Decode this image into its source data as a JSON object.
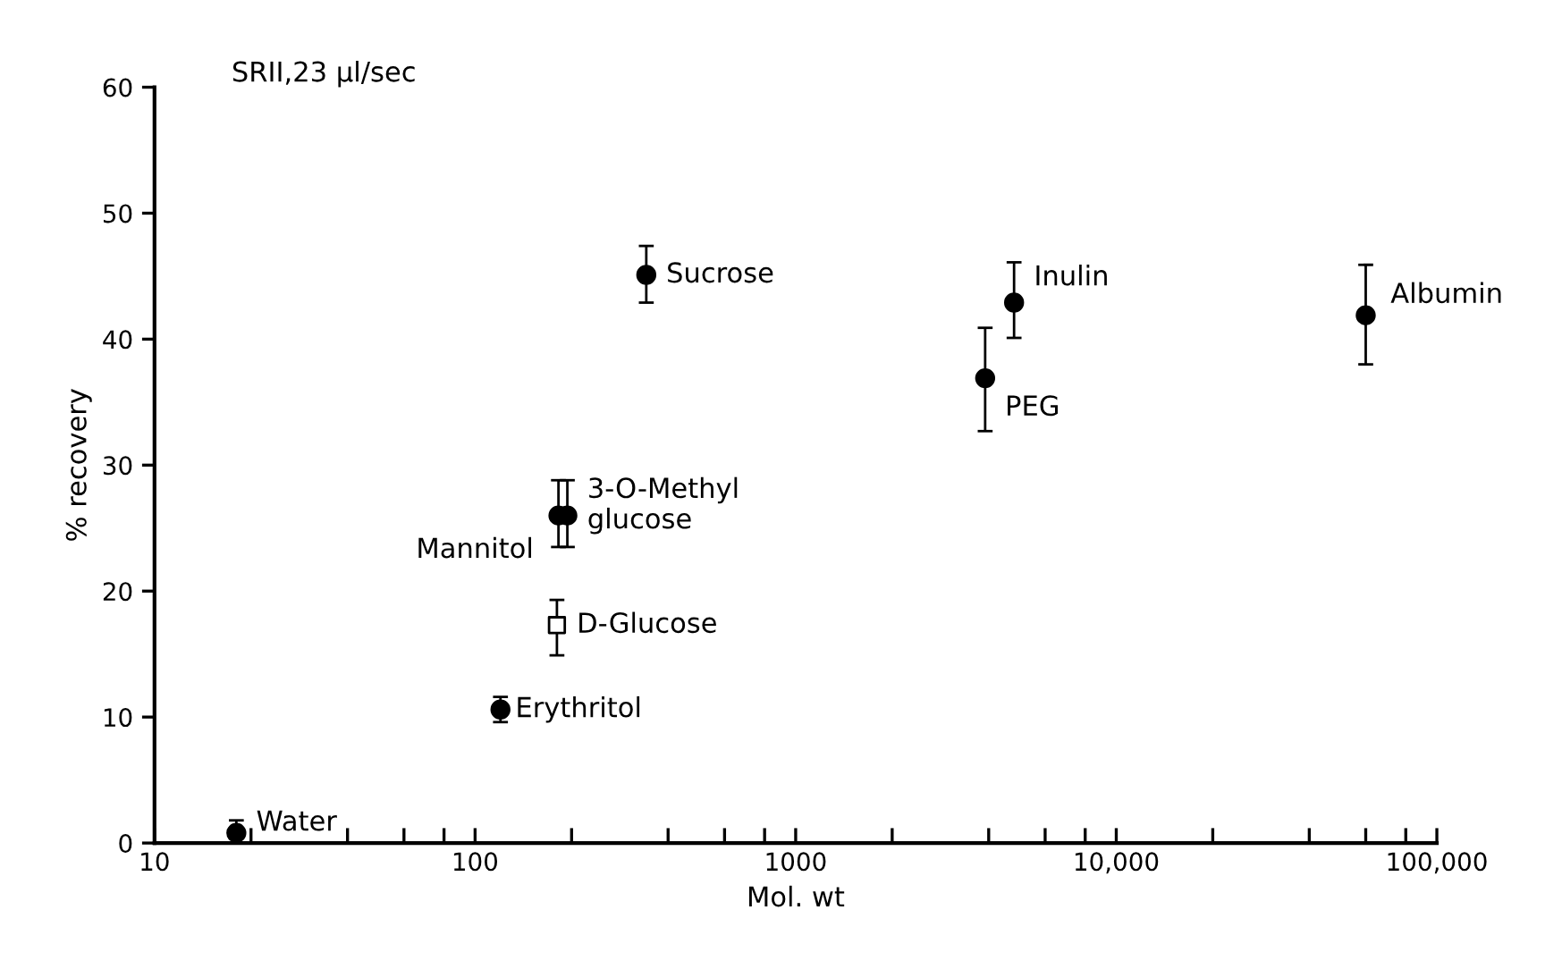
{
  "chart_data": {
    "type": "scatter",
    "title": "SRII,23 μl/sec",
    "xlabel": "Mol. wt",
    "ylabel": "% recovery",
    "log": "x",
    "xlim": [
      10,
      100000
    ],
    "ylim": [
      0,
      60
    ],
    "xticks": [
      {
        "value": 10,
        "label": "10"
      },
      {
        "value": 20,
        "label": null
      },
      {
        "value": 40,
        "label": null
      },
      {
        "value": 60,
        "label": null
      },
      {
        "value": 80,
        "label": null
      },
      {
        "value": 100,
        "label": "100"
      },
      {
        "value": 200,
        "label": null
      },
      {
        "value": 400,
        "label": null
      },
      {
        "value": 600,
        "label": null
      },
      {
        "value": 800,
        "label": null
      },
      {
        "value": 1000,
        "label": "1000"
      },
      {
        "value": 2000,
        "label": null
      },
      {
        "value": 4000,
        "label": null
      },
      {
        "value": 6000,
        "label": null
      },
      {
        "value": 8000,
        "label": null
      },
      {
        "value": 10000,
        "label": "10,000"
      },
      {
        "value": 20000,
        "label": null
      },
      {
        "value": 40000,
        "label": null
      },
      {
        "value": 60000,
        "label": null
      },
      {
        "value": 80000,
        "label": null
      },
      {
        "value": 100000,
        "label": "100,000"
      }
    ],
    "yticks": [
      0,
      10,
      20,
      30,
      40,
      50,
      60
    ],
    "grid": false,
    "legend": false,
    "series": [
      {
        "color": "#000000",
        "marker": "circle",
        "x": [
          18,
          120,
          182,
          194,
          342,
          3900,
          4800,
          60000
        ],
        "values": [
          0.8,
          10.6,
          26,
          26,
          45.1,
          36.9,
          42.9,
          41.9
        ],
        "errors": [
          1.0,
          1.0,
          [
            23.5,
            28.8
          ],
          [
            23.5,
            28.8
          ],
          [
            42.9,
            47.4
          ],
          [
            32.7,
            40.9
          ],
          [
            40.1,
            46.1
          ],
          [
            38.0,
            45.9
          ]
        ]
      },
      {
        "color": "#000000",
        "marker": "square",
        "x": [
          180
        ],
        "values": [
          17.3
        ],
        "errors": [
          [
            14.9,
            19.3
          ]
        ]
      }
    ],
    "annotations": [
      {
        "text": "Water",
        "x": 18,
        "y": 0.8
      },
      {
        "text": "Erythritol",
        "x": 120,
        "y": 10.6
      },
      {
        "text": "D-Glucose",
        "x": 180,
        "y": 17.3
      },
      {
        "text": "Mannitol",
        "x": 182,
        "y": 26
      },
      {
        "text": "3-O-Methyl\nglucose",
        "x": 194,
        "y": 26
      },
      {
        "text": "Sucrose",
        "x": 342,
        "y": 45.1
      },
      {
        "text": "PEG",
        "x": 3900,
        "y": 36.9
      },
      {
        "text": "Inulin",
        "x": 4800,
        "y": 42.9
      },
      {
        "text": "Albumin",
        "x": 60000,
        "y": 41.9
      }
    ]
  }
}
